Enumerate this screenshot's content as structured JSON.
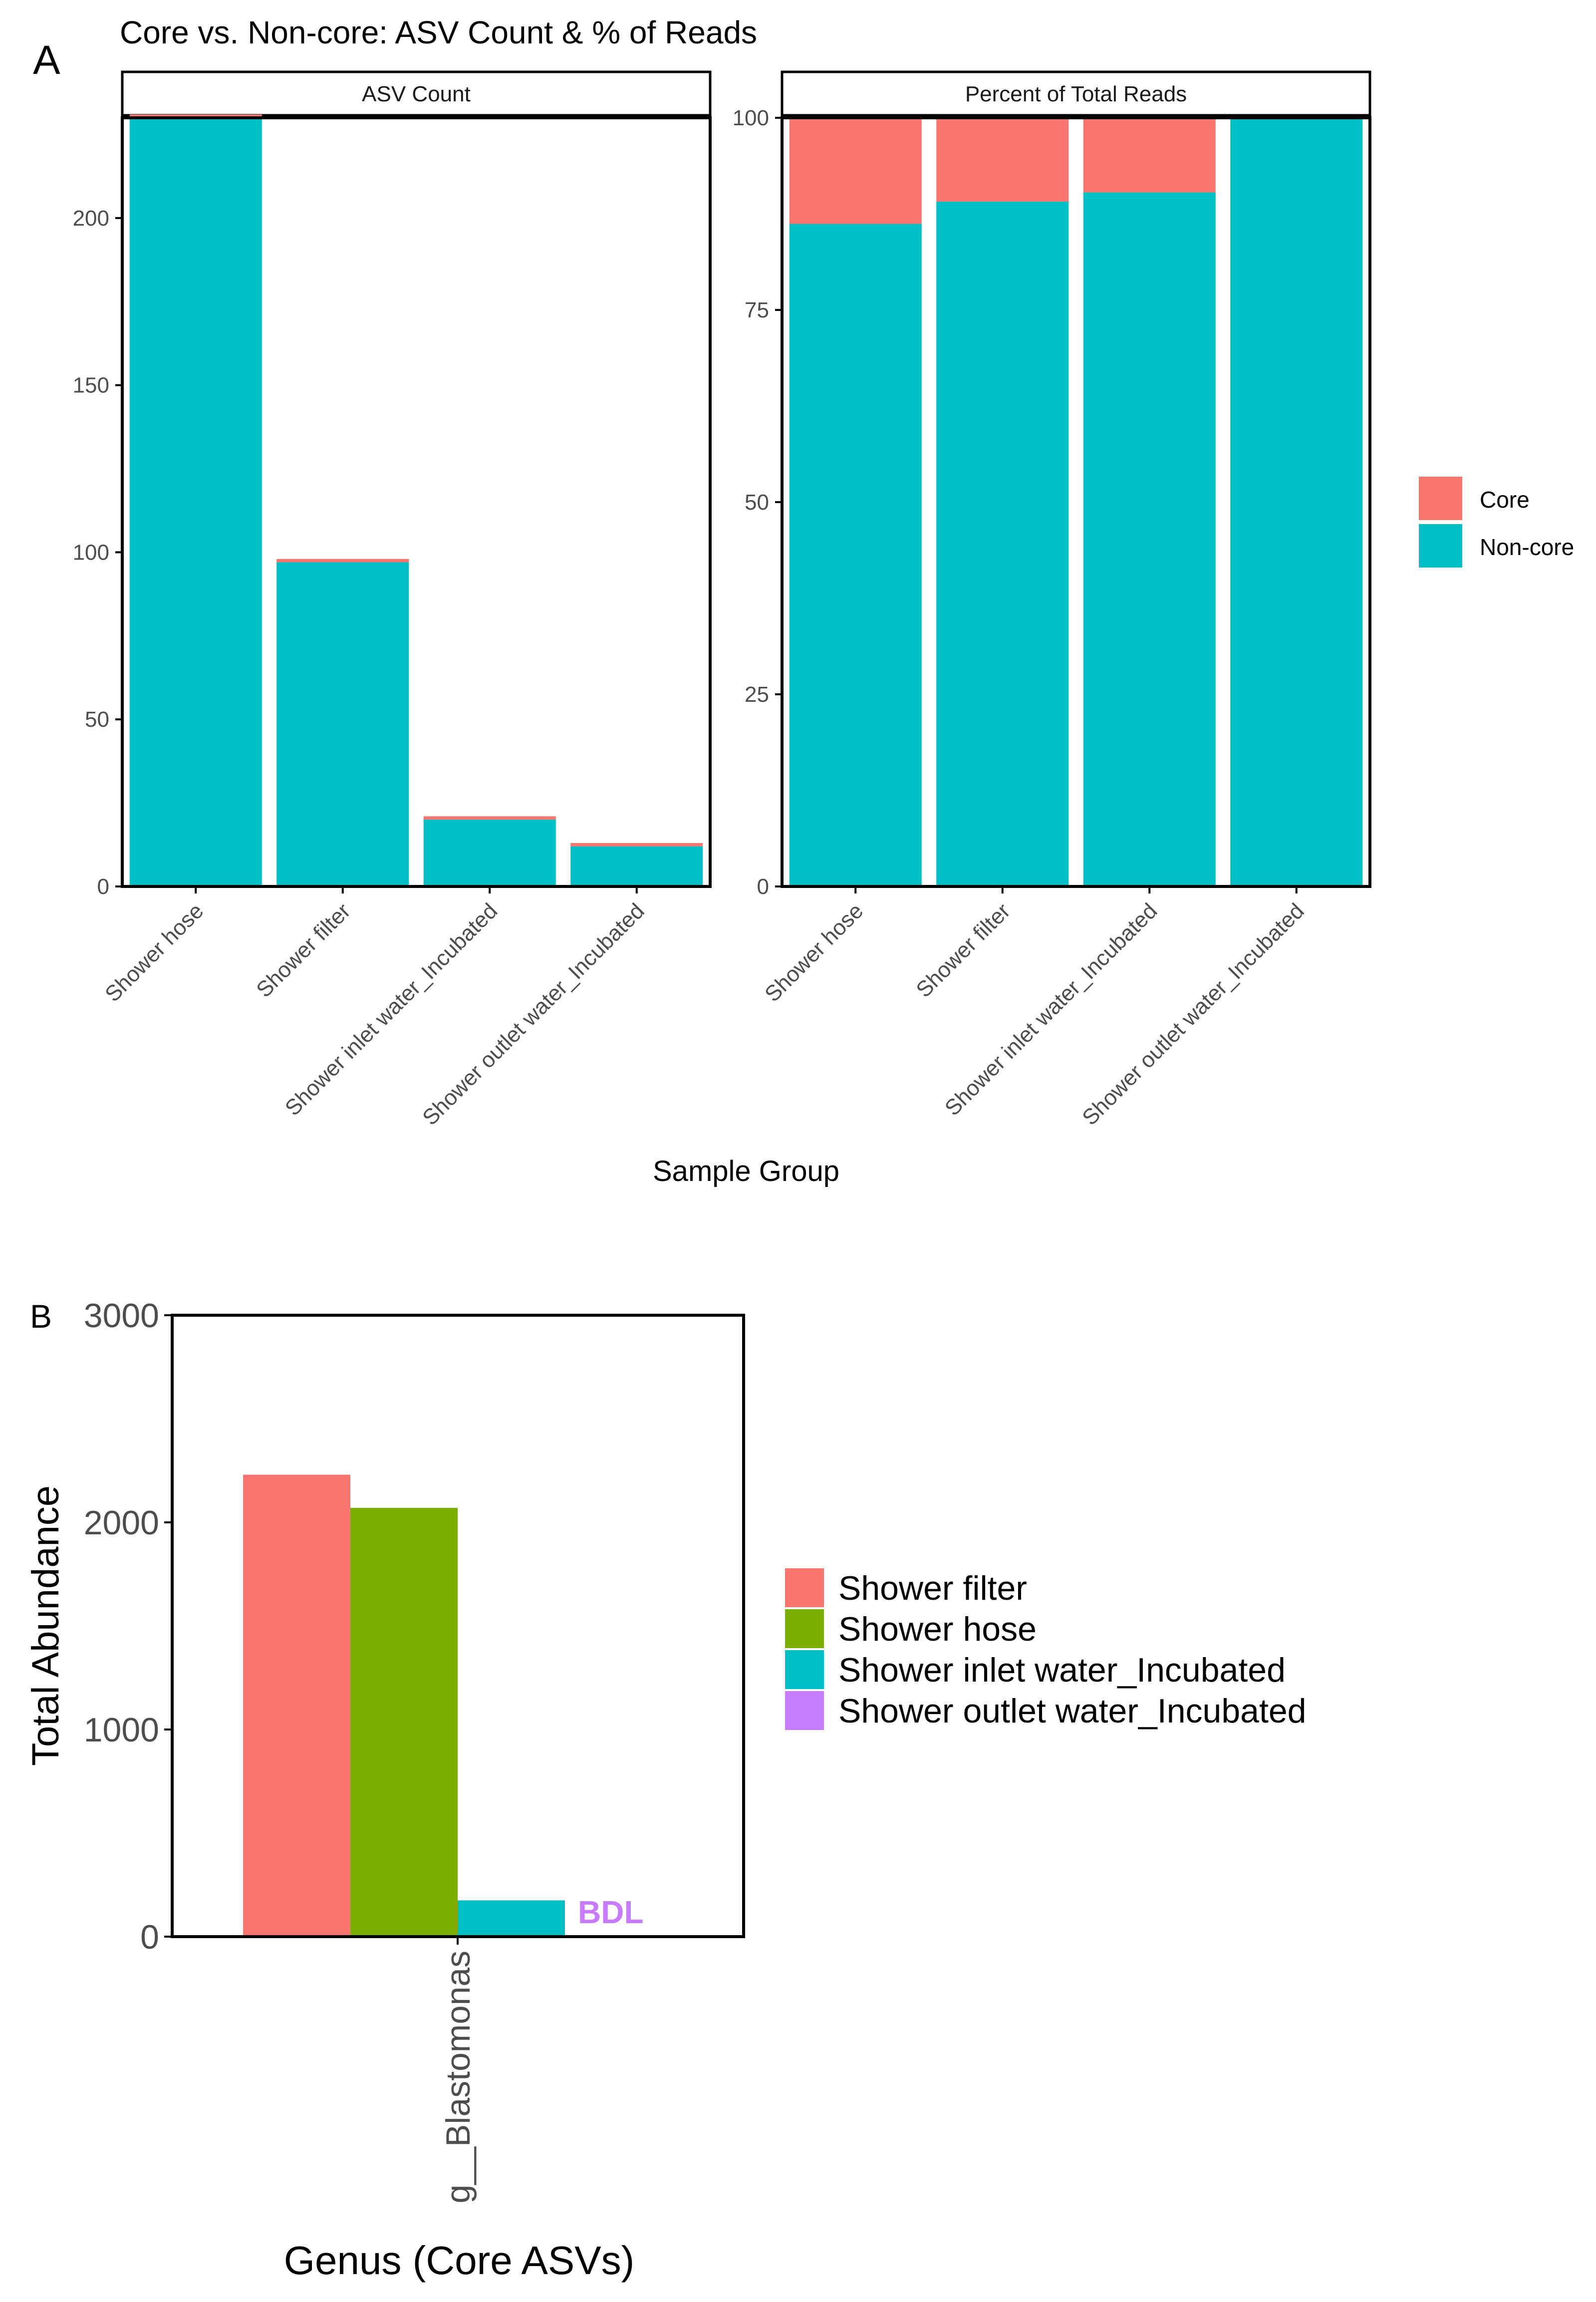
{
  "colors": {
    "core": "#F8766D",
    "noncore": "#00BFC4",
    "shower_filter": "#F8766D",
    "shower_hose": "#7CAE00",
    "shower_inlet": "#00BFC4",
    "shower_outlet": "#C77CFF",
    "bdl_text": "#C77CFF",
    "axis": "#000000",
    "tick_text": "#4D4D4D",
    "strip_fill": "#FFFFFF"
  },
  "panel_a": {
    "label": "A",
    "title": "Core vs. Non-core: ASV Count & % of Reads",
    "xlabel": "Sample Group",
    "legend": [
      "Core",
      "Non-core"
    ]
  },
  "panel_b": {
    "label": "B",
    "legend": [
      "Shower filter",
      "Shower hose",
      "Shower inlet water_Incubated",
      "Shower outlet water_Incubated"
    ]
  },
  "chart_data": [
    {
      "id": "asv_count",
      "type": "bar",
      "stacked": true,
      "facet": "ASV Count",
      "categories": [
        "Shower hose",
        "Shower filter",
        "Shower inlet water_Incubated",
        "Shower outlet water_Incubated"
      ],
      "series": [
        {
          "name": "Non-core",
          "values": [
            230,
            97,
            20,
            12
          ]
        },
        {
          "name": "Core",
          "values": [
            1,
            1,
            1,
            1
          ]
        }
      ],
      "ylim": [
        0,
        230
      ],
      "yticks": [
        0,
        50,
        100,
        150,
        200
      ],
      "xlabel": "Sample Group",
      "ylabel": ""
    },
    {
      "id": "percent_reads",
      "type": "bar",
      "stacked": true,
      "facet": "Percent of Total Reads",
      "categories": [
        "Shower hose",
        "Shower filter",
        "Shower inlet water_Incubated",
        "Shower outlet water_Incubated"
      ],
      "series": [
        {
          "name": "Non-core",
          "values": [
            86.2,
            89.1,
            90.3,
            100
          ]
        },
        {
          "name": "Core",
          "values": [
            13.8,
            10.9,
            9.7,
            0
          ]
        }
      ],
      "ylim": [
        0,
        100
      ],
      "yticks": [
        0,
        25,
        50,
        75,
        100
      ],
      "xlabel": "Sample Group",
      "ylabel": ""
    },
    {
      "id": "total_abundance",
      "type": "bar",
      "stacked": false,
      "title": "",
      "categories": [
        "g__Blastomonas"
      ],
      "series": [
        {
          "name": "Shower filter",
          "values": [
            2230
          ]
        },
        {
          "name": "Shower hose",
          "values": [
            2070
          ]
        },
        {
          "name": "Shower inlet water_Incubated",
          "values": [
            175
          ]
        },
        {
          "name": "Shower outlet water_Incubated",
          "values": [
            0
          ]
        }
      ],
      "annotation": "BDL",
      "ylim": [
        0,
        3000
      ],
      "yticks": [
        0,
        1000,
        2000,
        3000
      ],
      "xlabel": "Genus (Core ASVs)",
      "ylabel": "Total Abundance"
    }
  ]
}
